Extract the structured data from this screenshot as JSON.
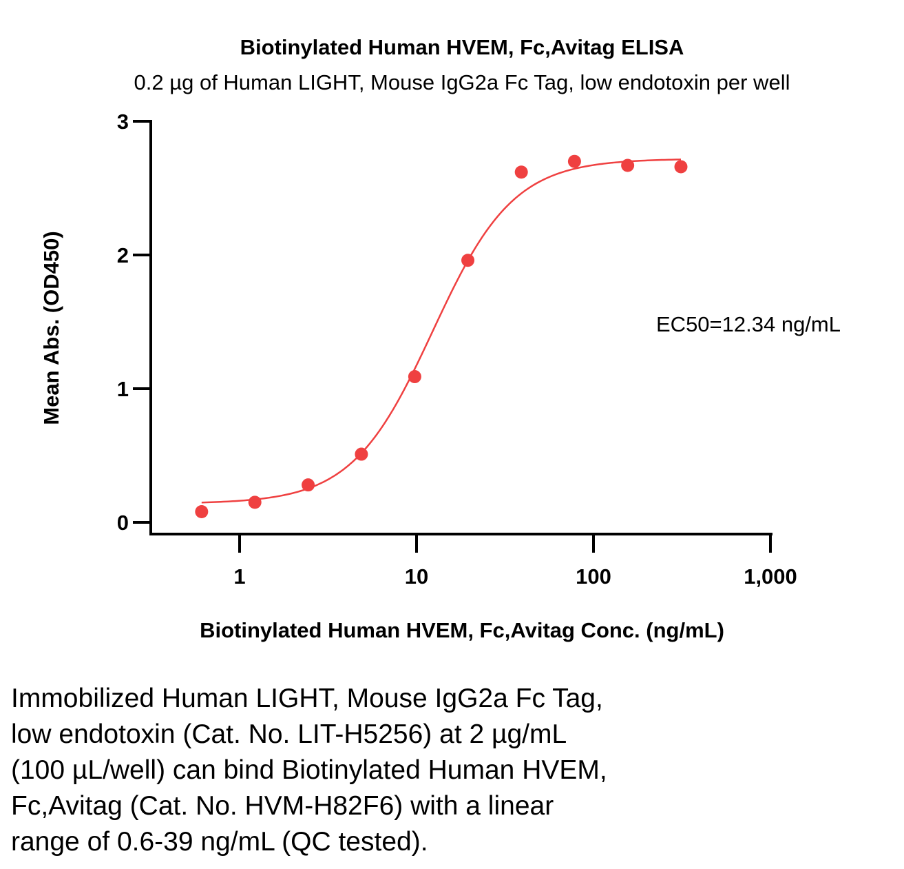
{
  "chart_data": {
    "type": "scatter",
    "title": "Biotinylated Human HVEM, Fc,Avitag ELISA",
    "subtitle": "0.2 µg of Human LIGHT, Mouse IgG2a Fc Tag, low endotoxin per well",
    "xlabel": "Biotinylated Human HVEM, Fc,Avitag Conc. (ng/mL)",
    "ylabel": "Mean Abs. (OD450)",
    "x_scale": "log",
    "xlim": [
      0.3,
      1000
    ],
    "ylim": [
      0,
      3
    ],
    "x_ticks": [
      {
        "value": 1,
        "label": "1"
      },
      {
        "value": 10,
        "label": "10"
      },
      {
        "value": 100,
        "label": "100"
      },
      {
        "value": 1000,
        "label": "1,000"
      }
    ],
    "y_ticks": [
      {
        "value": 0,
        "label": "0"
      },
      {
        "value": 1,
        "label": "1"
      },
      {
        "value": 2,
        "label": "2"
      },
      {
        "value": 3,
        "label": "3"
      }
    ],
    "grid": false,
    "point_color": "#ef4040",
    "curve_color": "#ef4040",
    "series": [
      {
        "x": [
          0.61,
          1.22,
          2.44,
          4.88,
          9.77,
          19.5,
          39.1,
          78.1,
          156,
          312
        ],
        "y": [
          0.08,
          0.15,
          0.28,
          0.51,
          1.09,
          1.96,
          2.62,
          2.7,
          2.67,
          2.66
        ]
      }
    ],
    "fit": {
      "model": "4PL",
      "bottom": 0.14,
      "top": 2.72,
      "ec50": 12.34,
      "hill": 1.9,
      "x_range": [
        0.61,
        312
      ]
    },
    "annotation": "EC50=12.34 ng/mL"
  },
  "caption": {
    "lines": [
      "Immobilized Human LIGHT, Mouse IgG2a Fc Tag,",
      "low endotoxin (Cat. No. LIT-H5256) at 2 µg/mL",
      "(100 µL/well) can bind Biotinylated Human HVEM,",
      "Fc,Avitag (Cat. No. HVM-H82F6) with a linear",
      "range of 0.6-39 ng/mL (QC tested)."
    ]
  }
}
